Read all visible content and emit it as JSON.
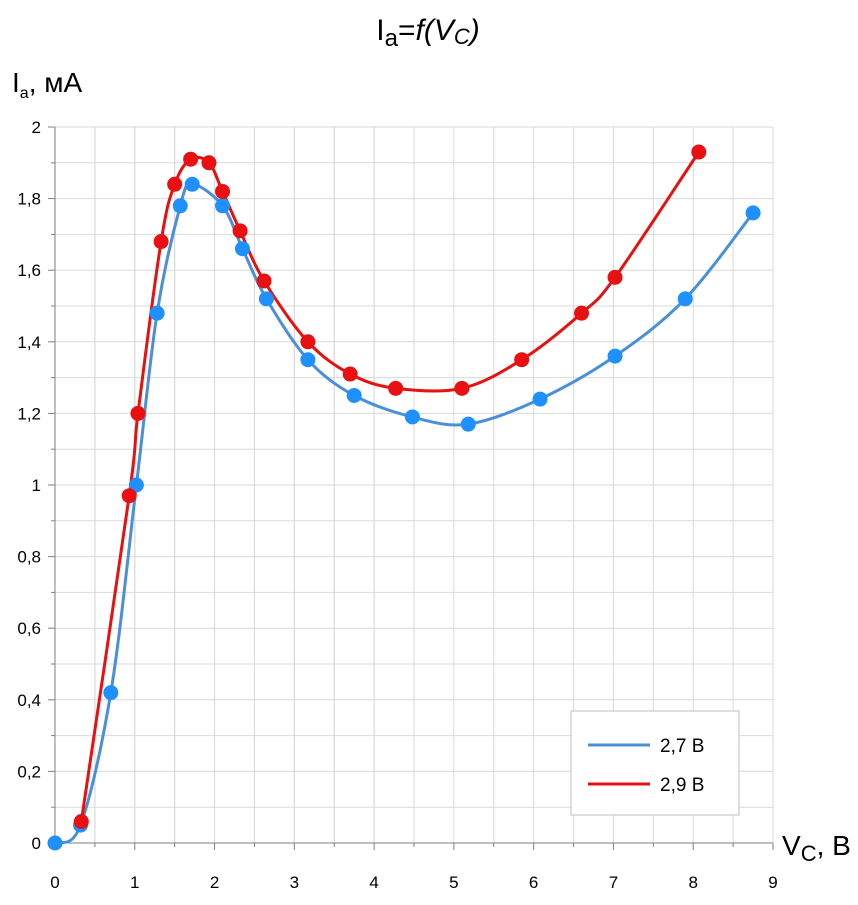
{
  "chart_data": {
    "type": "scatter",
    "title_parts": {
      "base": "I",
      "sub": "a",
      "eq": "=",
      "func": "f",
      "open": "(V",
      "sub2": "C",
      "close": ")"
    },
    "ylabel_parts": {
      "base": "I",
      "sub": "a",
      "rest": ", мА"
    },
    "xlabel_parts": {
      "base": "V",
      "sub": "C",
      "rest": ", В"
    },
    "xlim": [
      0,
      9
    ],
    "ylim": [
      0,
      2
    ],
    "x_ticks": [
      0,
      1,
      2,
      3,
      4,
      5,
      6,
      7,
      8,
      9
    ],
    "x_tick_labels": [
      "0",
      "1",
      "2",
      "3",
      "4",
      "5",
      "6",
      "7",
      "8",
      "9"
    ],
    "y_ticks": [
      0,
      0.2,
      0.4,
      0.6,
      0.8,
      1,
      1.2,
      1.4,
      1.6,
      1.8,
      2
    ],
    "y_tick_labels": [
      "0",
      "0,2",
      "0,4",
      "0,6",
      "0,8",
      "1",
      "1,2",
      "1,4",
      "1,6",
      "1,8",
      "2"
    ],
    "grid": true,
    "smooth_lines": true,
    "legend_position": "bottom-right",
    "series": [
      {
        "name": "2,7 В",
        "color": "#4a90d9",
        "marker_color": "#1e90ff",
        "points": [
          [
            0,
            0
          ],
          [
            0.32,
            0.05
          ],
          [
            0.7,
            0.42
          ],
          [
            1.02,
            1.0
          ],
          [
            1.28,
            1.48
          ],
          [
            1.57,
            1.78
          ],
          [
            1.72,
            1.84
          ],
          [
            2.1,
            1.78
          ],
          [
            2.35,
            1.66
          ],
          [
            2.65,
            1.52
          ],
          [
            3.17,
            1.35
          ],
          [
            3.75,
            1.25
          ],
          [
            4.48,
            1.19
          ],
          [
            5.18,
            1.17
          ],
          [
            6.08,
            1.24
          ],
          [
            7.02,
            1.36
          ],
          [
            7.9,
            1.52
          ],
          [
            8.75,
            1.76
          ]
        ]
      },
      {
        "name": "2,9 В",
        "color": "#e81010",
        "marker_color": "#e81010",
        "points": [
          [
            0.33,
            0.06
          ],
          [
            0.93,
            0.97
          ],
          [
            1.04,
            1.2
          ],
          [
            1.33,
            1.68
          ],
          [
            1.5,
            1.84
          ],
          [
            1.7,
            1.91
          ],
          [
            1.93,
            1.9
          ],
          [
            2.1,
            1.82
          ],
          [
            2.32,
            1.71
          ],
          [
            2.62,
            1.57
          ],
          [
            3.17,
            1.4
          ],
          [
            3.7,
            1.31
          ],
          [
            4.27,
            1.27
          ],
          [
            5.1,
            1.27
          ],
          [
            5.85,
            1.35
          ],
          [
            6.6,
            1.48
          ],
          [
            7.02,
            1.58
          ],
          [
            8.07,
            1.93
          ]
        ]
      }
    ]
  }
}
